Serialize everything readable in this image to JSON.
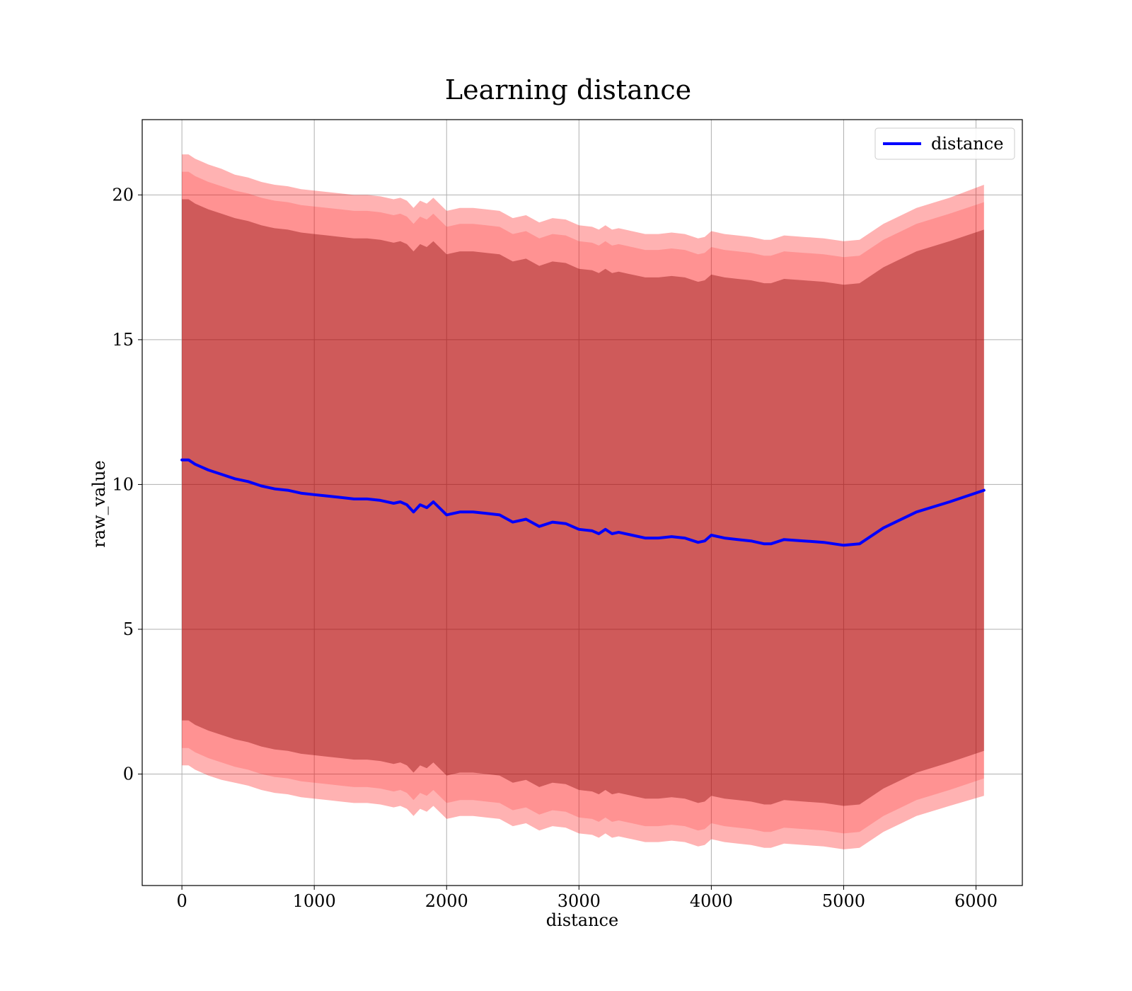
{
  "chart_data": {
    "type": "area",
    "title": "Learning distance",
    "xlabel": "distance",
    "ylabel": "raw_value",
    "xlim": [
      -300,
      6350
    ],
    "ylim": [
      -3.85,
      22.6
    ],
    "x_ticks": [
      0,
      1000,
      2000,
      3000,
      4000,
      5000,
      6000
    ],
    "y_ticks": [
      0,
      5,
      10,
      15,
      20
    ],
    "grid": true,
    "legend": {
      "position": "top-right",
      "entries": [
        "distance"
      ]
    },
    "colors": {
      "line": "#0000ff",
      "band_outer": "#ff0000",
      "band_inner": "#800000",
      "grid": "#b0b0b0"
    },
    "x": [
      0,
      50,
      100,
      150,
      200,
      300,
      400,
      500,
      600,
      700,
      800,
      900,
      1000,
      1100,
      1200,
      1300,
      1400,
      1500,
      1600,
      1650,
      1700,
      1750,
      1800,
      1850,
      1900,
      2000,
      2100,
      2200,
      2300,
      2400,
      2500,
      2600,
      2700,
      2800,
      2900,
      3000,
      3100,
      3150,
      3200,
      3250,
      3300,
      3400,
      3500,
      3600,
      3700,
      3800,
      3900,
      3950,
      4000,
      4100,
      4200,
      4300,
      4400,
      4450,
      4550,
      4700,
      4850,
      5000,
      5120,
      5300,
      5550,
      5800,
      6060
    ],
    "series": [
      {
        "name": "distance",
        "values": [
          10.85,
          10.85,
          10.7,
          10.6,
          10.5,
          10.35,
          10.2,
          10.1,
          9.95,
          9.85,
          9.8,
          9.7,
          9.65,
          9.6,
          9.55,
          9.5,
          9.5,
          9.45,
          9.35,
          9.4,
          9.3,
          9.05,
          9.3,
          9.2,
          9.4,
          8.95,
          9.05,
          9.05,
          9.0,
          8.95,
          8.7,
          8.8,
          8.55,
          8.7,
          8.65,
          8.45,
          8.4,
          8.3,
          8.45,
          8.3,
          8.35,
          8.25,
          8.15,
          8.15,
          8.2,
          8.15,
          8.0,
          8.05,
          8.25,
          8.15,
          8.1,
          8.05,
          7.95,
          7.95,
          8.1,
          8.05,
          8.0,
          7.9,
          7.95,
          8.5,
          9.05,
          9.4,
          9.8
        ]
      }
    ],
    "bands": [
      {
        "name": "outer",
        "offsets": [
          10.55,
          10.55,
          10.55,
          10.55,
          10.55,
          10.55,
          10.5,
          10.5,
          10.5,
          10.5,
          10.5,
          10.5,
          10.5,
          10.5,
          10.5,
          10.5,
          10.5,
          10.5,
          10.5,
          10.5,
          10.5,
          10.5,
          10.5,
          10.5,
          10.5,
          10.5,
          10.5,
          10.5,
          10.5,
          10.5,
          10.5,
          10.5,
          10.5,
          10.5,
          10.5,
          10.5,
          10.5,
          10.5,
          10.5,
          10.5,
          10.5,
          10.5,
          10.5,
          10.5,
          10.5,
          10.5,
          10.5,
          10.5,
          10.5,
          10.5,
          10.5,
          10.5,
          10.5,
          10.5,
          10.5,
          10.5,
          10.5,
          10.5,
          10.5,
          10.5,
          10.5,
          10.5,
          10.55
        ]
      },
      {
        "name": "middle",
        "offsets": [
          9.95,
          9.95,
          9.95,
          9.95,
          9.95,
          9.95,
          9.95,
          9.95,
          9.95,
          9.95,
          9.95,
          9.95,
          9.95,
          9.95,
          9.95,
          9.95,
          9.95,
          9.95,
          9.95,
          9.95,
          9.95,
          9.95,
          9.95,
          9.95,
          9.95,
          9.95,
          9.95,
          9.95,
          9.95,
          9.95,
          9.95,
          9.95,
          9.95,
          9.95,
          9.95,
          9.95,
          9.95,
          9.95,
          9.95,
          9.95,
          9.95,
          9.95,
          9.95,
          9.95,
          9.95,
          9.95,
          9.95,
          9.95,
          9.95,
          9.95,
          9.95,
          9.95,
          9.95,
          9.95,
          9.95,
          9.95,
          9.95,
          9.95,
          9.95,
          9.95,
          9.95,
          9.95,
          9.95
        ]
      },
      {
        "name": "inner",
        "offsets": [
          9.0,
          9.0,
          9.0,
          9.0,
          9.0,
          9.0,
          9.0,
          9.0,
          9.0,
          9.0,
          9.0,
          9.0,
          9.0,
          9.0,
          9.0,
          9.0,
          9.0,
          9.0,
          9.0,
          9.0,
          9.0,
          9.0,
          9.0,
          9.0,
          9.0,
          9.0,
          9.0,
          9.0,
          9.0,
          9.0,
          9.0,
          9.0,
          9.0,
          9.0,
          9.0,
          9.0,
          9.0,
          9.0,
          9.0,
          9.0,
          9.0,
          9.0,
          9.0,
          9.0,
          9.0,
          9.0,
          9.0,
          9.0,
          9.0,
          9.0,
          9.0,
          9.0,
          9.0,
          9.0,
          9.0,
          9.0,
          9.0,
          9.0,
          9.0,
          9.0,
          9.0,
          9.0,
          9.0
        ]
      }
    ]
  }
}
